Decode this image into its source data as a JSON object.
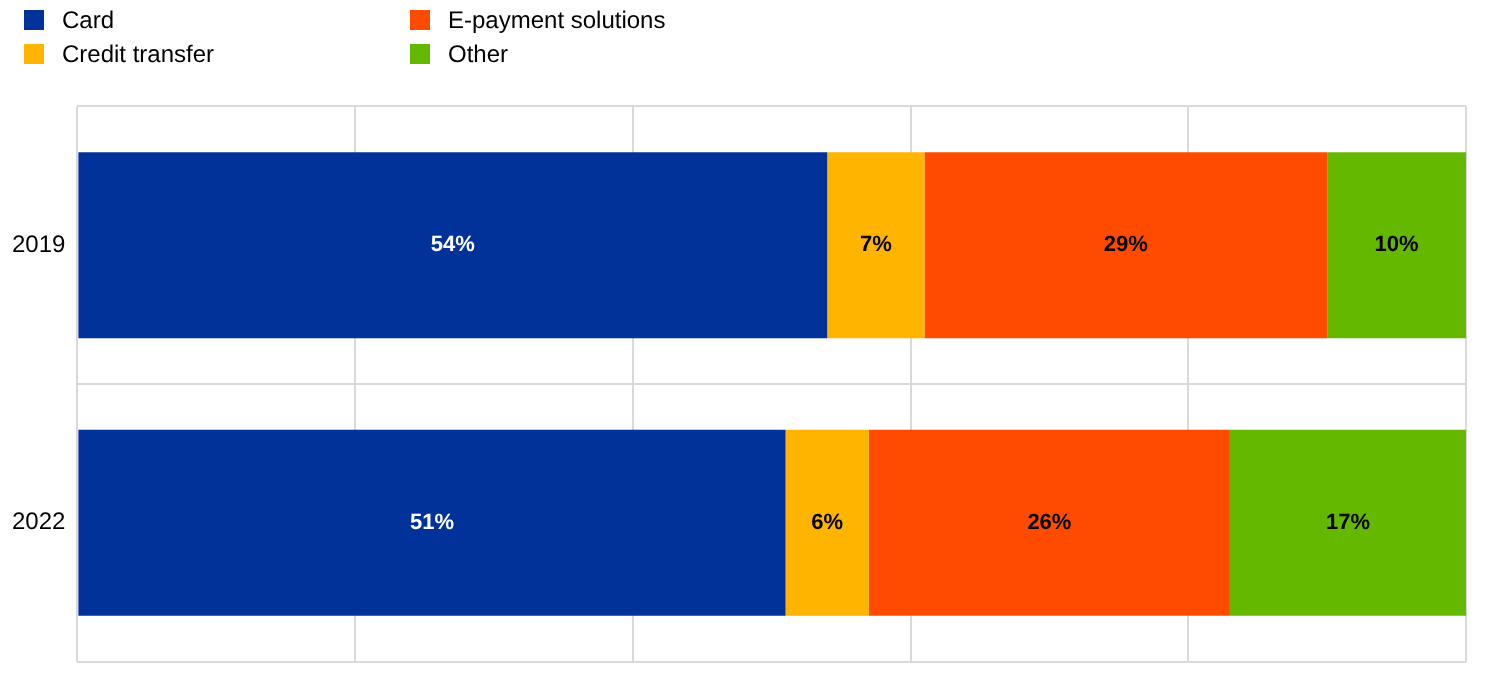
{
  "chart_data": {
    "type": "bar",
    "orientation": "horizontal",
    "stacked": true,
    "categories": [
      "2019",
      "2022"
    ],
    "series": [
      {
        "name": "Card",
        "color": "#003299",
        "values": [
          54,
          51
        ],
        "value_labels": [
          "54%",
          "51%"
        ]
      },
      {
        "name": "Credit transfer",
        "color": "#ffb400",
        "values": [
          7,
          6
        ],
        "value_labels": [
          "7%",
          "6%"
        ]
      },
      {
        "name": "E-payment solutions",
        "color": "#ff4b00",
        "values": [
          29,
          26
        ],
        "value_labels": [
          "29%",
          "26%"
        ]
      },
      {
        "name": "Other",
        "color": "#65b800",
        "values": [
          10,
          17
        ],
        "value_labels": [
          "10%",
          "17%"
        ]
      }
    ],
    "xlim": [
      0,
      100
    ],
    "xticks": [
      {
        "value": 0,
        "label": null
      },
      {
        "value": 20,
        "label": null
      },
      {
        "value": 40,
        "label": null
      },
      {
        "value": 60,
        "label": null
      },
      {
        "value": 80,
        "label": null
      },
      {
        "value": 100,
        "label": null
      }
    ],
    "tick_labels": "y",
    "grid": true,
    "legend": "top left"
  }
}
